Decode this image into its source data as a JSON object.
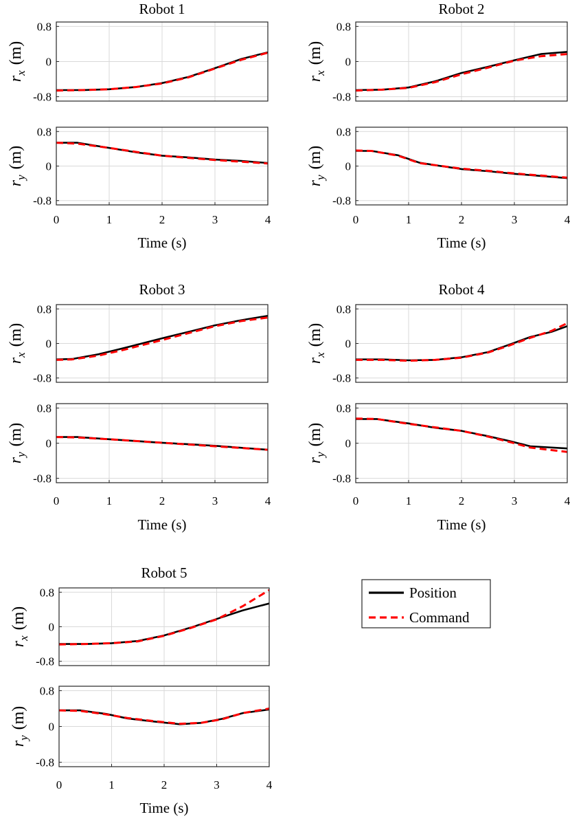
{
  "legend": {
    "items": [
      {
        "name": "Position",
        "color": "#000000",
        "style": "solid"
      },
      {
        "name": "Command",
        "color": "#ff0000",
        "style": "dashed"
      }
    ]
  },
  "chart_data": [
    {
      "type": "line",
      "title": "Robot 1",
      "xlabel": "Time (s)",
      "x_ticks": [
        "0",
        "1",
        "2",
        "3",
        "4"
      ],
      "xlim": [
        0,
        4
      ],
      "subplots": [
        {
          "ylabel": "r",
          "ylabel_sub": "x",
          "ylabel_unit": "(m)",
          "ylim": [
            -0.9,
            0.9
          ],
          "y_ticks": [
            "0.8",
            "0",
            "-0.8"
          ],
          "series": [
            {
              "name": "Position",
              "x": [
                0,
                0.5,
                1,
                1.5,
                2,
                2.5,
                3,
                3.5,
                4
              ],
              "y": [
                -0.65,
                -0.65,
                -0.63,
                -0.58,
                -0.49,
                -0.35,
                -0.15,
                0.06,
                0.21
              ]
            },
            {
              "name": "Command",
              "x": [
                0,
                0.5,
                1,
                1.5,
                2,
                2.5,
                3,
                3.5,
                4
              ],
              "y": [
                -0.66,
                -0.65,
                -0.63,
                -0.58,
                -0.5,
                -0.36,
                -0.16,
                0.04,
                0.2
              ]
            }
          ]
        },
        {
          "ylabel": "r",
          "ylabel_sub": "y",
          "ylabel_unit": "(m)",
          "ylim": [
            -0.9,
            0.9
          ],
          "y_ticks": [
            "0.8",
            "0",
            "-0.8"
          ],
          "series": [
            {
              "name": "Position",
              "x": [
                0,
                0.4,
                1,
                1.5,
                2,
                2.5,
                3,
                3.5,
                4
              ],
              "y": [
                0.54,
                0.54,
                0.42,
                0.32,
                0.24,
                0.2,
                0.15,
                0.12,
                0.07
              ]
            },
            {
              "name": "Command",
              "x": [
                0,
                0.4,
                1,
                1.5,
                2,
                2.5,
                3,
                3.5,
                4
              ],
              "y": [
                0.54,
                0.52,
                0.42,
                0.33,
                0.24,
                0.19,
                0.14,
                0.1,
                0.06
              ]
            }
          ]
        }
      ]
    },
    {
      "type": "line",
      "title": "Robot 2",
      "xlabel": "Time (s)",
      "x_ticks": [
        "0",
        "1",
        "2",
        "3",
        "4"
      ],
      "xlim": [
        0,
        4
      ],
      "subplots": [
        {
          "ylabel": "r",
          "ylabel_sub": "x",
          "ylabel_unit": "(m)",
          "ylim": [
            -0.9,
            0.9
          ],
          "y_ticks": [
            "0.8",
            "0",
            "-0.8"
          ],
          "series": [
            {
              "name": "Position",
              "x": [
                0,
                0.5,
                1,
                1.5,
                2,
                2.5,
                3,
                3.5,
                4
              ],
              "y": [
                -0.65,
                -0.64,
                -0.59,
                -0.45,
                -0.26,
                -0.12,
                0.03,
                0.17,
                0.22
              ]
            },
            {
              "name": "Command",
              "x": [
                0,
                0.5,
                1,
                1.5,
                2,
                2.5,
                3,
                3.5,
                4
              ],
              "y": [
                -0.66,
                -0.64,
                -0.6,
                -0.47,
                -0.29,
                -0.14,
                0.02,
                0.12,
                0.17
              ]
            }
          ]
        },
        {
          "ylabel": "r",
          "ylabel_sub": "y",
          "ylabel_unit": "(m)",
          "ylim": [
            -0.9,
            0.9
          ],
          "y_ticks": [
            "0.8",
            "0",
            "-0.8"
          ],
          "series": [
            {
              "name": "Position",
              "x": [
                0,
                0.3,
                0.8,
                1.2,
                1.5,
                2,
                2.5,
                3,
                3.5,
                4
              ],
              "y": [
                0.35,
                0.35,
                0.25,
                0.08,
                0.02,
                -0.07,
                -0.12,
                -0.18,
                -0.23,
                -0.28
              ]
            },
            {
              "name": "Command",
              "x": [
                0,
                0.3,
                0.8,
                1.2,
                1.5,
                2,
                2.5,
                3,
                3.5,
                4
              ],
              "y": [
                0.36,
                0.35,
                0.24,
                0.07,
                0.02,
                -0.06,
                -0.11,
                -0.17,
                -0.22,
                -0.27
              ]
            }
          ]
        }
      ]
    },
    {
      "type": "line",
      "title": "Robot 3",
      "xlabel": "Time (s)",
      "x_ticks": [
        "0",
        "1",
        "2",
        "3",
        "4"
      ],
      "xlim": [
        0,
        4
      ],
      "subplots": [
        {
          "ylabel": "r",
          "ylabel_sub": "x",
          "ylabel_unit": "(m)",
          "ylim": [
            -0.9,
            0.9
          ],
          "y_ticks": [
            "0.8",
            "0",
            "-0.8"
          ],
          "series": [
            {
              "name": "Position",
              "x": [
                0,
                0.3,
                0.8,
                1.3,
                2,
                2.5,
                3,
                3.5,
                4
              ],
              "y": [
                -0.37,
                -0.36,
                -0.25,
                -0.1,
                0.12,
                0.27,
                0.42,
                0.54,
                0.64
              ]
            },
            {
              "name": "Command",
              "x": [
                0,
                0.3,
                0.8,
                1.3,
                2,
                2.5,
                3,
                3.5,
                4
              ],
              "y": [
                -0.38,
                -0.37,
                -0.28,
                -0.14,
                0.08,
                0.24,
                0.4,
                0.52,
                0.6
              ]
            }
          ]
        },
        {
          "ylabel": "r",
          "ylabel_sub": "y",
          "ylabel_unit": "(m)",
          "ylim": [
            -0.9,
            0.9
          ],
          "y_ticks": [
            "0.8",
            "0",
            "-0.8"
          ],
          "series": [
            {
              "name": "Position",
              "x": [
                0,
                0.4,
                1,
                2,
                3,
                4
              ],
              "y": [
                0.14,
                0.14,
                0.09,
                0.01,
                -0.06,
                -0.15
              ]
            },
            {
              "name": "Command",
              "x": [
                0,
                0.4,
                1,
                2,
                3,
                4
              ],
              "y": [
                0.14,
                0.13,
                0.09,
                0.01,
                -0.07,
                -0.15
              ]
            }
          ]
        }
      ]
    },
    {
      "type": "line",
      "title": "Robot 4",
      "xlabel": "Time (s)",
      "x_ticks": [
        "0",
        "1",
        "2",
        "3",
        "4"
      ],
      "xlim": [
        0,
        4
      ],
      "subplots": [
        {
          "ylabel": "r",
          "ylabel_sub": "x",
          "ylabel_unit": "(m)",
          "ylim": [
            -0.9,
            0.9
          ],
          "y_ticks": [
            "0.8",
            "0",
            "-0.8"
          ],
          "series": [
            {
              "name": "Position",
              "x": [
                0,
                0.5,
                1,
                1.5,
                2,
                2.5,
                2.9,
                3.3,
                3.7,
                4
              ],
              "y": [
                -0.37,
                -0.37,
                -0.39,
                -0.38,
                -0.32,
                -0.2,
                -0.03,
                0.15,
                0.27,
                0.4
              ]
            },
            {
              "name": "Command",
              "x": [
                0,
                0.5,
                1,
                1.5,
                2,
                2.5,
                2.9,
                3.3,
                3.7,
                4
              ],
              "y": [
                -0.38,
                -0.38,
                -0.4,
                -0.38,
                -0.33,
                -0.21,
                -0.05,
                0.13,
                0.29,
                0.47
              ]
            }
          ]
        },
        {
          "ylabel": "r",
          "ylabel_sub": "y",
          "ylabel_unit": "(m)",
          "ylim": [
            -0.9,
            0.9
          ],
          "y_ticks": [
            "0.8",
            "0",
            "-0.8"
          ],
          "series": [
            {
              "name": "Position",
              "x": [
                0,
                0.4,
                1,
                1.5,
                2,
                2.5,
                2.9,
                3.3,
                4
              ],
              "y": [
                0.55,
                0.55,
                0.45,
                0.35,
                0.28,
                0.16,
                0.05,
                -0.07,
                -0.12
              ]
            },
            {
              "name": "Command",
              "x": [
                0,
                0.4,
                1,
                1.5,
                2,
                2.5,
                2.9,
                3.3,
                4
              ],
              "y": [
                0.56,
                0.55,
                0.44,
                0.36,
                0.28,
                0.15,
                0.03,
                -0.1,
                -0.2
              ]
            }
          ]
        }
      ]
    },
    {
      "type": "line",
      "title": "Robot 5",
      "xlabel": "Time (s)",
      "x_ticks": [
        "0",
        "1",
        "2",
        "3",
        "4"
      ],
      "xlim": [
        0,
        4
      ],
      "subplots": [
        {
          "ylabel": "r",
          "ylabel_sub": "x",
          "ylabel_unit": "(m)",
          "ylim": [
            -0.9,
            0.9
          ],
          "y_ticks": [
            "0.8",
            "0",
            "-0.8"
          ],
          "series": [
            {
              "name": "Position",
              "x": [
                0,
                0.5,
                1,
                1.5,
                2,
                2.5,
                3,
                3.5,
                4
              ],
              "y": [
                -0.4,
                -0.4,
                -0.38,
                -0.33,
                -0.2,
                -0.02,
                0.18,
                0.38,
                0.54
              ]
            },
            {
              "name": "Command",
              "x": [
                0,
                0.5,
                1,
                1.5,
                2,
                2.5,
                3,
                3.5,
                4
              ],
              "y": [
                -0.41,
                -0.4,
                -0.38,
                -0.34,
                -0.21,
                -0.03,
                0.17,
                0.48,
                0.85
              ]
            }
          ]
        },
        {
          "ylabel": "r",
          "ylabel_sub": "y",
          "ylabel_unit": "(m)",
          "ylim": [
            -0.9,
            0.9
          ],
          "y_ticks": [
            "0.8",
            "0",
            "-0.8"
          ],
          "series": [
            {
              "name": "Position",
              "x": [
                0,
                0.4,
                0.9,
                1.3,
                1.8,
                2.3,
                2.7,
                3.1,
                3.5,
                4
              ],
              "y": [
                0.36,
                0.36,
                0.28,
                0.18,
                0.11,
                0.05,
                0.08,
                0.17,
                0.3,
                0.38
              ]
            },
            {
              "name": "Command",
              "x": [
                0,
                0.4,
                0.9,
                1.3,
                1.8,
                2.3,
                2.7,
                3.1,
                3.5,
                4
              ],
              "y": [
                0.36,
                0.35,
                0.27,
                0.19,
                0.12,
                0.06,
                0.08,
                0.16,
                0.3,
                0.4
              ]
            }
          ]
        }
      ]
    }
  ]
}
